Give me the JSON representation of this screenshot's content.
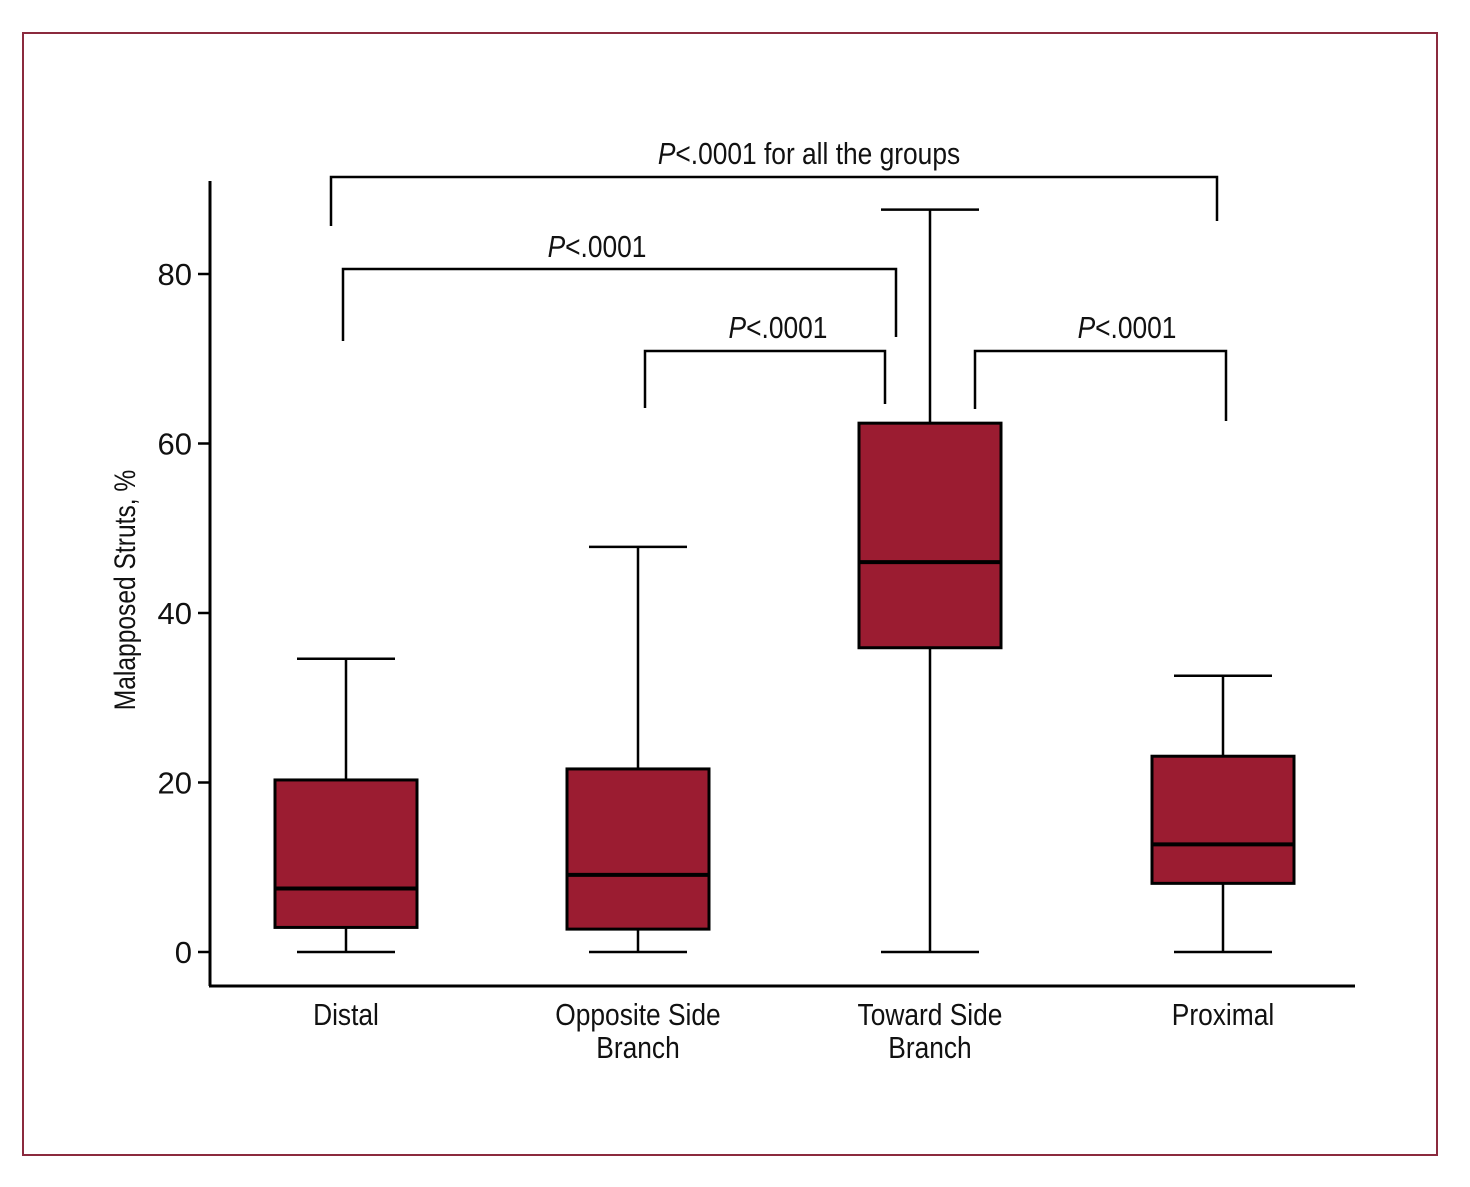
{
  "chart_data": {
    "type": "box",
    "title": "",
    "xlabel": "",
    "ylabel": "Malapposed Struts, %",
    "ylim": [
      -4,
      92
    ],
    "yticks": [
      0,
      20,
      40,
      60,
      80
    ],
    "grid": false,
    "colors": {
      "box_fill": "#9b1c31",
      "frame": "#8b2a3e",
      "line": "#000000"
    },
    "categories": [
      "Distal",
      "Opposite Side Branch",
      "Toward Side Branch",
      "Proximal"
    ],
    "category_lines": [
      [
        "Distal"
      ],
      [
        "Opposite Side",
        "Branch"
      ],
      [
        "Toward Side",
        "Branch"
      ],
      [
        "Proximal"
      ]
    ],
    "boxes": [
      {
        "name": "Distal",
        "whisker_low": 0,
        "q1": 2.9,
        "median": 7.5,
        "q3": 20.3,
        "whisker_high": 34.6
      },
      {
        "name": "Opposite Side Branch",
        "whisker_low": 0,
        "q1": 2.7,
        "median": 9.1,
        "q3": 21.6,
        "whisker_high": 47.8
      },
      {
        "name": "Toward Side Branch",
        "whisker_low": 0,
        "q1": 35.9,
        "median": 46.0,
        "q3": 62.4,
        "whisker_high": 87.6
      },
      {
        "name": "Proximal",
        "whisker_low": 0,
        "q1": 8.1,
        "median": 12.7,
        "q3": 23.1,
        "whisker_high": 32.6
      }
    ],
    "annotations": [
      {
        "label_italic": "P",
        "label_rest": "<.0001 for all the groups",
        "from": "Distal",
        "to": "Proximal"
      },
      {
        "label_italic": "P",
        "label_rest": "<.0001",
        "from": "Distal",
        "to": "Toward Side Branch"
      },
      {
        "label_italic": "P",
        "label_rest": "<.0001",
        "from": "Opposite Side Branch",
        "to": "Toward Side Branch"
      },
      {
        "label_italic": "P",
        "label_rest": "<.0001",
        "from": "Toward Side Branch",
        "to": "Proximal"
      }
    ]
  }
}
